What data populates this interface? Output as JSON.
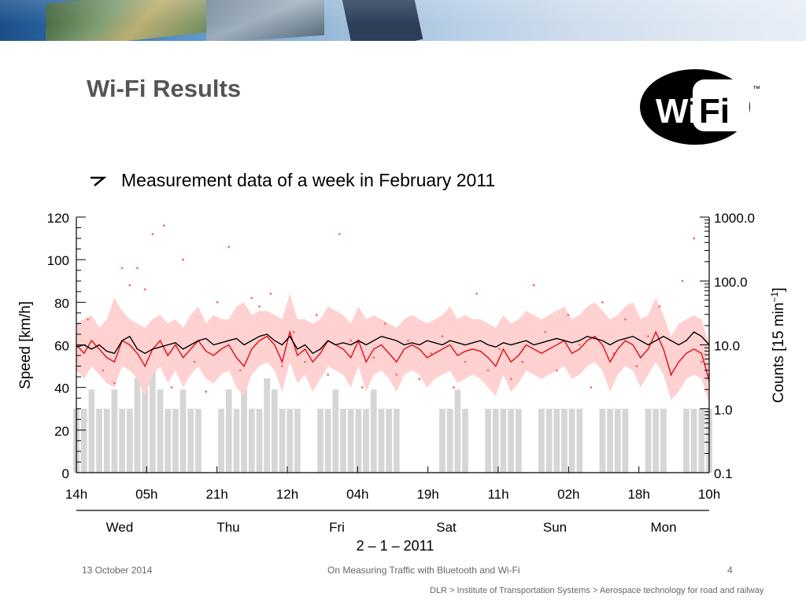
{
  "slide": {
    "title": "Wi-Fi Results",
    "bullet": "Measurement data of a week in February 2011",
    "logo_text": "Wi Fi",
    "logo_tm": "™"
  },
  "footer": {
    "date": "13 October 2014",
    "presentation": "On Measuring Traffic with Bluetooth and Wi-Fi",
    "page": "4",
    "institute": "DLR > Institute of Transportation Systems > Aerospace technology for road and railway"
  },
  "chart_data": {
    "type": "line",
    "ylabel": "Speed [km/h]",
    "y2label": "Counts [15 min",
    "y2label_exp": "−1",
    "y2label_close": "]",
    "ylim": [
      0,
      120
    ],
    "y2lim": [
      0.1,
      1000
    ],
    "y2_scale": "log",
    "yticks": [
      "0",
      "20",
      "40",
      "60",
      "80",
      "100",
      "120"
    ],
    "y2ticks": [
      "0.1",
      "1.0",
      "10.0",
      "100.0",
      "1000.0"
    ],
    "xticks": [
      "14h",
      "05h",
      "21h",
      "12h",
      "04h",
      "19h",
      "11h",
      "02h",
      "18h",
      "10h"
    ],
    "days": [
      "Wed",
      "Thu",
      "Fri",
      "Sat",
      "Sun",
      "Mon"
    ],
    "date_label": "2 – 1 – 2011",
    "grid": false,
    "series": [
      {
        "name": "",
        "style": "red line with pink band and red points",
        "x": [
          0,
          2,
          4,
          6,
          8,
          10,
          12,
          14,
          16,
          18,
          20,
          22,
          24,
          26,
          28,
          30,
          32,
          34,
          36,
          38,
          40,
          42,
          44,
          46,
          48,
          50,
          52,
          54,
          56,
          58,
          60,
          62,
          64,
          66,
          68,
          70,
          72,
          74,
          76,
          78,
          80,
          82,
          84,
          86,
          88,
          90,
          92,
          94,
          96,
          98,
          100,
          102,
          104,
          106,
          108,
          110,
          112,
          114,
          116,
          118,
          120,
          122,
          124,
          126,
          128,
          130,
          132,
          134,
          136,
          138,
          140,
          142,
          144,
          146,
          148,
          150,
          152,
          154,
          156,
          158,
          160,
          162,
          164,
          166
        ],
        "values": [
          60,
          56,
          62,
          58,
          54,
          52,
          62,
          60,
          56,
          50,
          58,
          62,
          55,
          60,
          54,
          58,
          62,
          57,
          55,
          58,
          60,
          54,
          50,
          58,
          62,
          64,
          60,
          52,
          66,
          55,
          58,
          52,
          56,
          62,
          60,
          58,
          54,
          62,
          52,
          58,
          60,
          56,
          52,
          58,
          60,
          58,
          54,
          56,
          58,
          60,
          55,
          57,
          58,
          57,
          54,
          50,
          58,
          52,
          55,
          60,
          58,
          56,
          58,
          60,
          62,
          56,
          58,
          62,
          64,
          60,
          52,
          58,
          62,
          60,
          54,
          58,
          66,
          58,
          46,
          52,
          56,
          58,
          56,
          43
        ],
        "band_upper": [
          70,
          72,
          74,
          68,
          72,
          82,
          76,
          72,
          70,
          68,
          72,
          74,
          70,
          72,
          68,
          74,
          78,
          70,
          74,
          72,
          72,
          78,
          80,
          74,
          76,
          76,
          74,
          72,
          84,
          72,
          72,
          70,
          72,
          78,
          76,
          74,
          70,
          78,
          72,
          74,
          72,
          70,
          68,
          72,
          74,
          72,
          70,
          72,
          74,
          78,
          72,
          74,
          72,
          72,
          70,
          68,
          74,
          70,
          72,
          76,
          74,
          72,
          74,
          76,
          78,
          72,
          74,
          78,
          80,
          76,
          72,
          74,
          78,
          80,
          72,
          74,
          82,
          74,
          64,
          70,
          72,
          74,
          72,
          60
        ],
        "band_lower": [
          48,
          44,
          50,
          46,
          42,
          40,
          50,
          48,
          44,
          36,
          46,
          50,
          42,
          48,
          40,
          46,
          50,
          44,
          42,
          46,
          48,
          40,
          36,
          46,
          50,
          52,
          48,
          38,
          52,
          42,
          46,
          38,
          44,
          50,
          48,
          46,
          40,
          50,
          38,
          46,
          48,
          44,
          38,
          46,
          48,
          46,
          40,
          44,
          46,
          48,
          42,
          44,
          46,
          44,
          40,
          36,
          46,
          38,
          42,
          48,
          46,
          44,
          46,
          48,
          50,
          44,
          46,
          50,
          52,
          48,
          38,
          46,
          50,
          48,
          40,
          46,
          52,
          46,
          34,
          38,
          44,
          46,
          44,
          32
        ]
      },
      {
        "name": "",
        "style": "black line",
        "x": [
          0,
          2,
          4,
          6,
          8,
          10,
          12,
          14,
          16,
          18,
          20,
          22,
          24,
          26,
          28,
          30,
          32,
          34,
          36,
          38,
          40,
          42,
          44,
          46,
          48,
          50,
          52,
          54,
          56,
          58,
          60,
          62,
          64,
          66,
          68,
          70,
          72,
          74,
          76,
          78,
          80,
          82,
          84,
          86,
          88,
          90,
          92,
          94,
          96,
          98,
          100,
          102,
          104,
          106,
          108,
          110,
          112,
          114,
          116,
          118,
          120,
          122,
          124,
          126,
          128,
          130,
          132,
          134,
          136,
          138,
          140,
          142,
          144,
          146,
          148,
          150,
          152,
          154,
          156,
          158,
          160,
          162,
          164,
          166
        ],
        "values": [
          59,
          60,
          58,
          60,
          57,
          56,
          62,
          64,
          58,
          56,
          58,
          59,
          60,
          61,
          58,
          60,
          62,
          63,
          60,
          61,
          62,
          63,
          60,
          62,
          64,
          65,
          62,
          60,
          64,
          58,
          60,
          56,
          58,
          62,
          60,
          61,
          60,
          62,
          60,
          62,
          64,
          63,
          62,
          60,
          61,
          60,
          62,
          61,
          60,
          62,
          61,
          60,
          61,
          62,
          60,
          59,
          61,
          60,
          61,
          62,
          60,
          61,
          62,
          63,
          62,
          61,
          62,
          64,
          63,
          62,
          60,
          62,
          63,
          64,
          62,
          60,
          62,
          64,
          62,
          60,
          62,
          66,
          64,
          60
        ]
      },
      {
        "name": "",
        "style": "grey count bars",
        "x": [
          0,
          2,
          4,
          6,
          8,
          10,
          12,
          14,
          16,
          18,
          20,
          22,
          24,
          26,
          28,
          30,
          32,
          34,
          36,
          38,
          40,
          42,
          44,
          46,
          48,
          50,
          52,
          54,
          56,
          58,
          60,
          62,
          64,
          66,
          68,
          70,
          72,
          74,
          76,
          78,
          80,
          82,
          84,
          86,
          88,
          90,
          92,
          94,
          96,
          98,
          100,
          102,
          104,
          106,
          108,
          110,
          112,
          114,
          116,
          118,
          120,
          122,
          124,
          126,
          128,
          130,
          132,
          134,
          136,
          138,
          140,
          142,
          144,
          146,
          148,
          150,
          152,
          154,
          156,
          158,
          160,
          162,
          164,
          166
        ],
        "values": [
          1,
          1,
          2,
          1,
          1,
          2,
          1,
          1,
          3,
          2,
          4,
          2,
          1,
          1,
          2,
          1,
          1,
          0.1,
          0.1,
          1,
          2,
          1,
          2,
          1,
          1,
          3,
          2,
          1,
          1,
          1,
          0.1,
          0.1,
          1,
          1,
          2,
          1,
          1,
          1,
          1,
          2,
          1,
          1,
          1,
          0.1,
          0.1,
          0.1,
          0.1,
          0.1,
          1,
          1,
          2,
          1,
          0.1,
          0.1,
          1,
          1,
          1,
          1,
          1,
          0.1,
          0.1,
          1,
          1,
          1,
          1,
          1,
          1,
          0.1,
          0.1,
          1,
          1,
          1,
          1,
          0.1,
          0.1,
          1,
          1,
          1,
          0.1,
          0.1,
          1,
          1,
          1,
          1
        ]
      }
    ],
    "scatter_points": [
      {
        "x": 3,
        "y": 72
      },
      {
        "x": 7,
        "y": 48
      },
      {
        "x": 10,
        "y": 42
      },
      {
        "x": 12,
        "y": 96
      },
      {
        "x": 14,
        "y": 88
      },
      {
        "x": 16,
        "y": 96
      },
      {
        "x": 18,
        "y": 86
      },
      {
        "x": 20,
        "y": 112
      },
      {
        "x": 23,
        "y": 116
      },
      {
        "x": 25,
        "y": 40
      },
      {
        "x": 28,
        "y": 100
      },
      {
        "x": 31,
        "y": 52
      },
      {
        "x": 34,
        "y": 38
      },
      {
        "x": 37,
        "y": 80
      },
      {
        "x": 40,
        "y": 106
      },
      {
        "x": 43,
        "y": 48
      },
      {
        "x": 46,
        "y": 82
      },
      {
        "x": 48,
        "y": 78
      },
      {
        "x": 51,
        "y": 84
      },
      {
        "x": 54,
        "y": 50
      },
      {
        "x": 57,
        "y": 66
      },
      {
        "x": 60,
        "y": 52
      },
      {
        "x": 63,
        "y": 74
      },
      {
        "x": 66,
        "y": 46
      },
      {
        "x": 69,
        "y": 112
      },
      {
        "x": 72,
        "y": 62
      },
      {
        "x": 75,
        "y": 40
      },
      {
        "x": 78,
        "y": 54
      },
      {
        "x": 81,
        "y": 70
      },
      {
        "x": 84,
        "y": 46
      },
      {
        "x": 87,
        "y": 62
      },
      {
        "x": 90,
        "y": 44
      },
      {
        "x": 93,
        "y": 56
      },
      {
        "x": 96,
        "y": 64
      },
      {
        "x": 99,
        "y": 40
      },
      {
        "x": 102,
        "y": 52
      },
      {
        "x": 105,
        "y": 84
      },
      {
        "x": 108,
        "y": 48
      },
      {
        "x": 111,
        "y": 58
      },
      {
        "x": 114,
        "y": 44
      },
      {
        "x": 117,
        "y": 52
      },
      {
        "x": 120,
        "y": 88
      },
      {
        "x": 123,
        "y": 66
      },
      {
        "x": 126,
        "y": 48
      },
      {
        "x": 129,
        "y": 74
      },
      {
        "x": 132,
        "y": 60
      },
      {
        "x": 135,
        "y": 40
      },
      {
        "x": 138,
        "y": 80
      },
      {
        "x": 141,
        "y": 56
      },
      {
        "x": 144,
        "y": 72
      },
      {
        "x": 147,
        "y": 50
      },
      {
        "x": 150,
        "y": 64
      },
      {
        "x": 153,
        "y": 78
      },
      {
        "x": 156,
        "y": 46
      },
      {
        "x": 159,
        "y": 90
      },
      {
        "x": 162,
        "y": 110
      },
      {
        "x": 164,
        "y": 52
      },
      {
        "x": 166,
        "y": 46
      }
    ],
    "xlim": [
      0,
      166
    ],
    "colors": {
      "line_red": "#e0191e",
      "band": "#ffd1d1",
      "points": "#ef7070",
      "line_black": "#000000",
      "bars": "#d6d6d6"
    }
  }
}
